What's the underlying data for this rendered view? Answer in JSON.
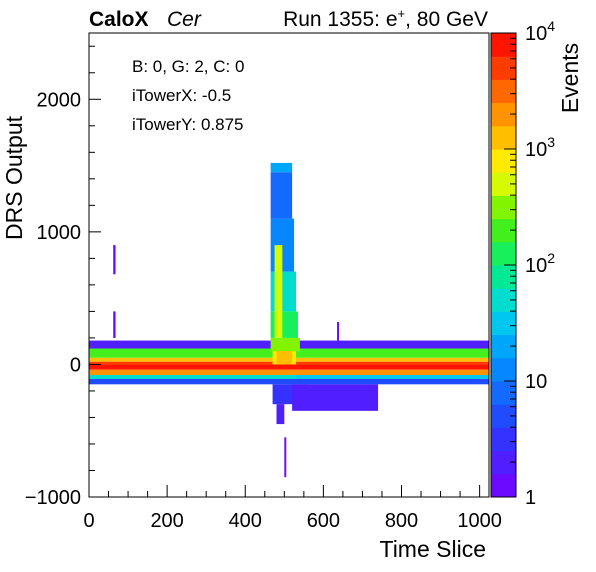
{
  "header": {
    "experiment": "CaloX",
    "detector": "Cer",
    "run_prefix": "Run 1355: e",
    "run_sup": "+",
    "run_suffix": ", 80 GeV"
  },
  "annotations": {
    "line1": "B: 0, G: 2, C: 0",
    "line2": "iTowerX: -0.5",
    "line3": "iTowerY: 0.875"
  },
  "chart_data": {
    "type": "heatmap",
    "xlabel": "Time Slice",
    "ylabel": "DRS Output",
    "zlabel": "Events",
    "xlim": [
      0,
      1024
    ],
    "ylim": [
      -1000,
      2500
    ],
    "zlim": [
      1,
      10000
    ],
    "z_scale": "log",
    "x_ticks": [
      0,
      200,
      400,
      600,
      800,
      1000
    ],
    "x_tick_labels": [
      "0",
      "200",
      "400",
      "600",
      "800",
      "1000"
    ],
    "y_ticks": [
      -1000,
      0,
      1000,
      2000
    ],
    "y_tick_labels": [
      "−1000",
      "0",
      "1000",
      "2000"
    ],
    "z_ticks": [
      1,
      10,
      100,
      1000,
      10000
    ],
    "z_tick_labels": [
      {
        "base": "1",
        "exp": ""
      },
      {
        "base": "10",
        "exp": ""
      },
      {
        "base": "10",
        "exp": "2"
      },
      {
        "base": "10",
        "exp": "3"
      },
      {
        "base": "10",
        "exp": "4"
      }
    ],
    "grid": false,
    "cells": [
      {
        "x0": 0,
        "x1": 1024,
        "y0": 50,
        "y1": 120,
        "z": 200
      },
      {
        "x0": 0,
        "x1": 1024,
        "y0": 20,
        "y1": 50,
        "z": 1200
      },
      {
        "x0": 0,
        "x1": 1024,
        "y0": 0,
        "y1": 20,
        "z": 4000
      },
      {
        "x0": 0,
        "x1": 1024,
        "y0": -40,
        "y1": 0,
        "z": 9000
      },
      {
        "x0": 0,
        "x1": 1024,
        "y0": -80,
        "y1": -40,
        "z": 2000
      },
      {
        "x0": 0,
        "x1": 530,
        "y0": -110,
        "y1": -80,
        "z": 60
      },
      {
        "x0": 530,
        "x1": 1024,
        "y0": -110,
        "y1": -80,
        "z": 30
      },
      {
        "x0": 0,
        "x1": 1024,
        "y0": -150,
        "y1": -110,
        "z": 5
      },
      {
        "x0": 0,
        "x1": 1024,
        "y0": 120,
        "y1": 180,
        "z": 2
      },
      {
        "x0": 470,
        "x1": 530,
        "y0": 0,
        "y1": 100,
        "z": 700
      },
      {
        "x0": 465,
        "x1": 540,
        "y0": 100,
        "y1": 200,
        "z": 300
      },
      {
        "x0": 465,
        "x1": 535,
        "y0": 200,
        "y1": 400,
        "z": 100
      },
      {
        "x0": 465,
        "x1": 530,
        "y0": 400,
        "y1": 700,
        "z": 40
      },
      {
        "x0": 465,
        "x1": 525,
        "y0": 700,
        "y1": 1100,
        "z": 15
      },
      {
        "x0": 465,
        "x1": 520,
        "y0": 1100,
        "y1": 1450,
        "z": 8
      },
      {
        "x0": 465,
        "x1": 520,
        "y0": 1450,
        "y1": 1520,
        "z": 25
      },
      {
        "x0": 475,
        "x1": 495,
        "y0": 200,
        "y1": 900,
        "z": 400
      },
      {
        "x0": 480,
        "x1": 520,
        "y0": 0,
        "y1": 100,
        "z": 1500
      },
      {
        "x0": 470,
        "x1": 560,
        "y0": -300,
        "y1": -150,
        "z": 3
      },
      {
        "x0": 520,
        "x1": 740,
        "y0": -350,
        "y1": -150,
        "z": 2
      },
      {
        "x0": 480,
        "x1": 500,
        "y0": -450,
        "y1": -300,
        "z": 2
      },
      {
        "x0": 62,
        "x1": 68,
        "y0": 680,
        "y1": 900,
        "z": 1
      },
      {
        "x0": 62,
        "x1": 68,
        "y0": 200,
        "y1": 400,
        "z": 1
      },
      {
        "x0": 500,
        "x1": 505,
        "y0": -850,
        "y1": -550,
        "z": 1
      },
      {
        "x0": 635,
        "x1": 640,
        "y0": 180,
        "y1": 320,
        "z": 1
      }
    ]
  }
}
